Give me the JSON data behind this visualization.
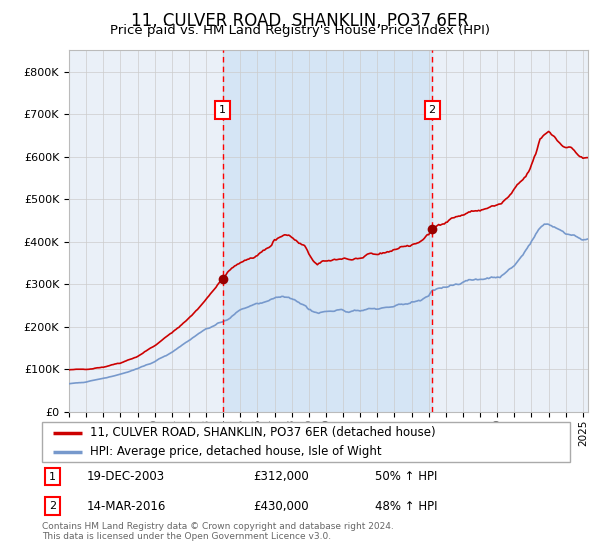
{
  "title": "11, CULVER ROAD, SHANKLIN, PO37 6ER",
  "subtitle": "Price paid vs. HM Land Registry's House Price Index (HPI)",
  "title_fontsize": 12,
  "subtitle_fontsize": 9.5,
  "background_color": "#ffffff",
  "plot_bg_color": "#eaf0f8",
  "shaded_region_color": "#d5e5f5",
  "red_line_color": "#cc0000",
  "blue_line_color": "#7799cc",
  "grid_color": "#cccccc",
  "sale1_date_num": 2003.97,
  "sale1_value": 312000,
  "sale1_label": "19-DEC-2003",
  "sale1_amount": "£312,000",
  "sale1_pct": "50% ↑ HPI",
  "sale2_date_num": 2016.2,
  "sale2_value": 430000,
  "sale2_label": "14-MAR-2016",
  "sale2_amount": "£430,000",
  "sale2_pct": "48% ↑ HPI",
  "legend_line1": "11, CULVER ROAD, SHANKLIN, PO37 6ER (detached house)",
  "legend_line2": "HPI: Average price, detached house, Isle of Wight",
  "footer": "Contains HM Land Registry data © Crown copyright and database right 2024.\nThis data is licensed under the Open Government Licence v3.0.",
  "ylim": [
    0,
    850000
  ],
  "xlim_start": 1995.0,
  "xlim_end": 2025.3
}
